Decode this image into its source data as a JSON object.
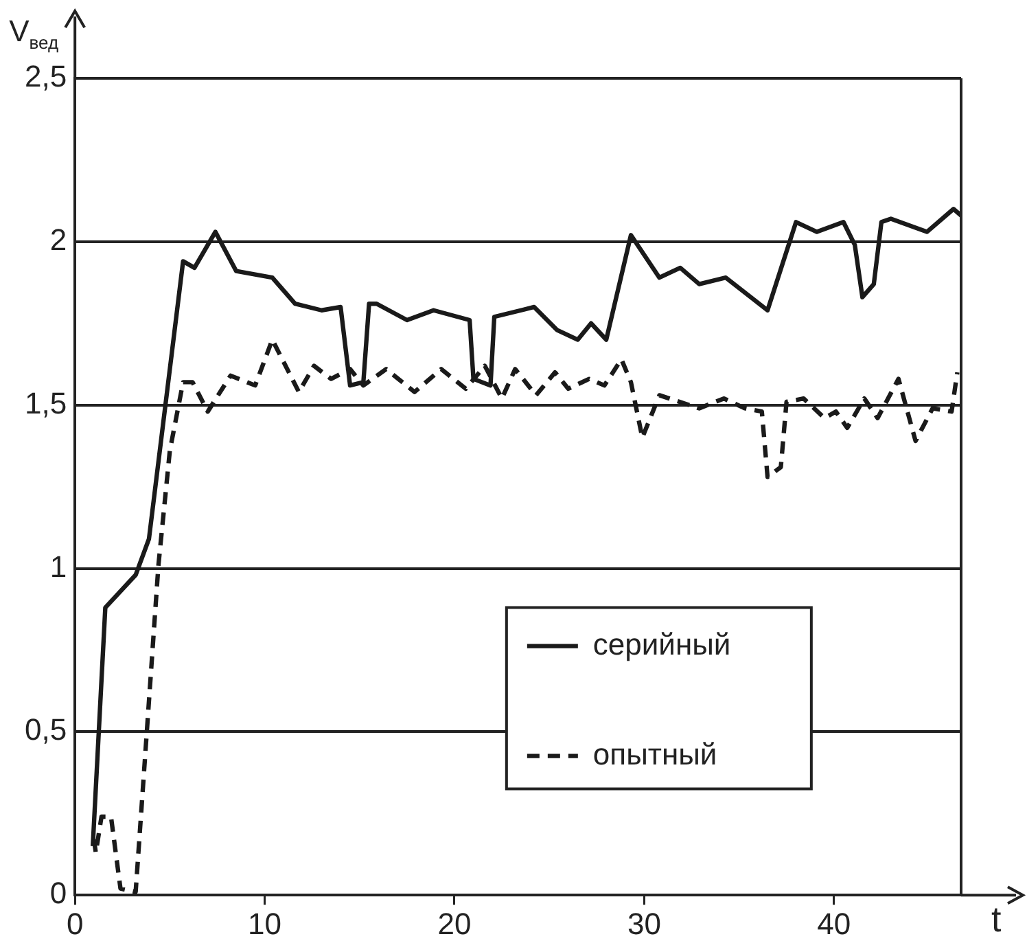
{
  "chart_data": {
    "type": "line",
    "xlabel": "t",
    "ylabel": "V$_{вед}$",
    "xlim": [
      0,
      46.7
    ],
    "ylim": [
      0,
      2.5
    ],
    "xticks": [
      0,
      10,
      20,
      30,
      40
    ],
    "yticks": [
      0,
      {
        "value": 0.5,
        "label": "0,5"
      },
      1,
      {
        "value": 1.5,
        "label": "1,5"
      },
      2,
      {
        "value": 2.5,
        "label": "2,5"
      }
    ],
    "grid": "y",
    "legend": "bottom right",
    "marker": "none",
    "series": [
      {
        "name": "серийный",
        "color": "#1a1a1a",
        "line_style": "solid",
        "x": [
          0.94,
          1.6,
          3.2,
          3.9,
          5.7,
          6.3,
          7.4,
          8.5,
          10.4,
          11.6,
          13.0,
          14.0,
          14.5,
          15.2,
          15.5,
          15.9,
          17.5,
          18.9,
          20.8,
          21.0,
          21.9,
          22.1,
          24.2,
          25.4,
          26.5,
          27.2,
          28.0,
          29.3,
          30.8,
          31.9,
          32.9,
          34.3,
          36.5,
          38.0,
          39.1,
          40.5,
          41.1,
          41.5,
          42.1,
          42.5,
          43.0,
          44.9,
          46.3,
          46.7
        ],
        "values": [
          0.15,
          0.88,
          0.98,
          1.09,
          1.94,
          1.92,
          2.03,
          1.91,
          1.89,
          1.81,
          1.79,
          1.8,
          1.56,
          1.57,
          1.81,
          1.81,
          1.76,
          1.79,
          1.76,
          1.58,
          1.56,
          1.77,
          1.8,
          1.73,
          1.7,
          1.75,
          1.7,
          2.02,
          1.89,
          1.92,
          1.87,
          1.89,
          1.79,
          2.06,
          2.03,
          2.06,
          1.99,
          1.83,
          1.87,
          2.06,
          2.07,
          2.03,
          2.1,
          2.08
        ]
      },
      {
        "name": "опытный",
        "color": "#1a1a1a",
        "line_style": "dashed",
        "x": [
          1.0,
          1.1,
          1.4,
          1.9,
          2.4,
          3.2,
          4.4,
          5.0,
          5.7,
          6.2,
          7.0,
          8.2,
          9.5,
          10.4,
          11.8,
          12.6,
          13.5,
          14.5,
          15.2,
          16.4,
          17.9,
          19.3,
          20.6,
          21.6,
          22.5,
          23.2,
          24.3,
          25.3,
          26.0,
          27.1,
          27.9,
          28.8,
          29.3,
          29.9,
          30.8,
          32.9,
          34.2,
          35.3,
          36.2,
          36.5,
          37.2,
          37.5,
          38.4,
          39.5,
          40.1,
          40.7,
          41.6,
          42.3,
          43.4,
          44.3,
          45.2,
          46.2,
          46.5
        ],
        "values": [
          0.17,
          0.13,
          0.24,
          0.24,
          0.02,
          0.01,
          1.01,
          1.36,
          1.57,
          1.57,
          1.48,
          1.59,
          1.56,
          1.7,
          1.54,
          1.62,
          1.58,
          1.61,
          1.56,
          1.61,
          1.54,
          1.61,
          1.55,
          1.62,
          1.52,
          1.61,
          1.53,
          1.6,
          1.55,
          1.58,
          1.56,
          1.64,
          1.57,
          1.4,
          1.53,
          1.49,
          1.52,
          1.49,
          1.48,
          1.28,
          1.31,
          1.51,
          1.52,
          1.46,
          1.48,
          1.43,
          1.52,
          1.46,
          1.58,
          1.39,
          1.49,
          1.48,
          1.6
        ]
      }
    ]
  }
}
